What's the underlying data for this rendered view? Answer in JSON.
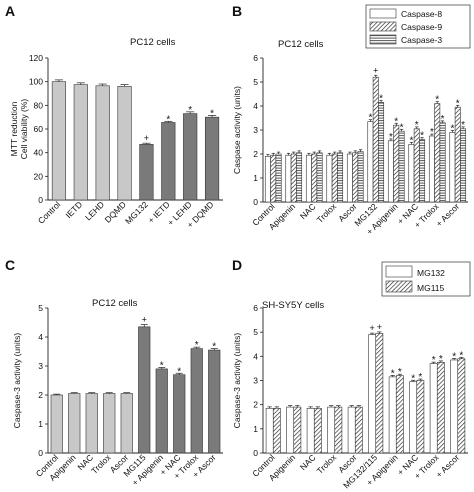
{
  "chart_data": [
    {
      "panel": "A",
      "type": "bar",
      "title": "PC12 cells",
      "ylabel": [
        "MTT reduction",
        "Cell viability (%)"
      ],
      "ylim": [
        0,
        120
      ],
      "yticks": [
        0,
        20,
        40,
        60,
        80,
        100,
        120
      ],
      "categories": [
        "Control",
        "IETD",
        "LEHD",
        "DQMD",
        "MG132",
        "+ IETD",
        "+ LEHD",
        "+ DQMD"
      ],
      "values": [
        100,
        97.5,
        96.5,
        96,
        47,
        65.5,
        73,
        70
      ],
      "errors": [
        1.5,
        1.5,
        1.5,
        1.5,
        1,
        1,
        1.5,
        1.5
      ],
      "annotations": [
        "",
        "",
        "",
        "",
        "+",
        "*",
        "*",
        "*"
      ],
      "bar_colors": [
        "#c8c8c8",
        "#c8c8c8",
        "#c8c8c8",
        "#c8c8c8",
        "#7a7a7a",
        "#7a7a7a",
        "#7a7a7a",
        "#7a7a7a"
      ]
    },
    {
      "panel": "B",
      "type": "bar",
      "title": "PC12 cells",
      "ylabel": "Caspase activity (units)",
      "ylim": [
        0,
        6
      ],
      "yticks": [
        0,
        1,
        2,
        3,
        4,
        5,
        6
      ],
      "categories": [
        "Control",
        "Apigenin",
        "NAC",
        "Trolox",
        "Ascor",
        "MG132",
        "+ Apigenin",
        "+ NAC",
        "+ Trolox",
        "+ Ascor"
      ],
      "legend": {
        "position": "top-right",
        "entries": [
          "Caspase-8",
          "Caspase-9",
          "Caspase-3"
        ]
      },
      "series": [
        {
          "name": "Caspase-8",
          "pattern": "open",
          "values": [
            1.9,
            1.95,
            1.95,
            1.95,
            2.0,
            3.35,
            2.55,
            2.4,
            2.75,
            2.9
          ],
          "annotations": [
            "",
            "",
            "",
            "",
            "",
            "*",
            "*",
            "*",
            "*",
            "*"
          ]
        },
        {
          "name": "Caspase-9",
          "pattern": "hatched",
          "values": [
            1.95,
            2.0,
            2.0,
            2.0,
            2.05,
            5.2,
            3.2,
            3.05,
            4.1,
            3.95
          ],
          "annotations": [
            "",
            "",
            "",
            "",
            "",
            "+",
            "*",
            "*",
            "*",
            "*"
          ]
        },
        {
          "name": "Caspase-3",
          "pattern": "lines",
          "values": [
            2.0,
            2.05,
            2.05,
            2.05,
            2.1,
            4.15,
            2.95,
            2.6,
            3.3,
            3.05
          ],
          "annotations": [
            "",
            "",
            "",
            "",
            "",
            "*",
            "*",
            "*",
            "*",
            "*"
          ]
        }
      ],
      "errors": 0.08
    },
    {
      "panel": "C",
      "type": "bar",
      "title": "PC12 cells",
      "ylabel": "Caspase-3 activity (units)",
      "ylim": [
        0,
        5
      ],
      "yticks": [
        0,
        1,
        2,
        3,
        4,
        5
      ],
      "categories": [
        "Control",
        "Apigenin",
        "NAC",
        "Trolox",
        "Ascor",
        "MG115",
        "+ Apigenin",
        "+ NAC",
        "+ Trolox",
        "+ Ascor"
      ],
      "values": [
        2.0,
        2.05,
        2.05,
        2.05,
        2.05,
        4.35,
        2.9,
        2.7,
        3.6,
        3.55
      ],
      "errors": [
        0.03,
        0.03,
        0.03,
        0.03,
        0.03,
        0.08,
        0.05,
        0.05,
        0.05,
        0.05
      ],
      "annotations": [
        "",
        "",
        "",
        "",
        "",
        "+",
        "*",
        "*",
        "*",
        "*"
      ],
      "bar_colors": [
        "#c8c8c8",
        "#c8c8c8",
        "#c8c8c8",
        "#c8c8c8",
        "#c8c8c8",
        "#7a7a7a",
        "#7a7a7a",
        "#7a7a7a",
        "#7a7a7a",
        "#7a7a7a"
      ]
    },
    {
      "panel": "D",
      "type": "bar",
      "title": "SH-SY5Y cells",
      "ylabel": "Caspase-3 activity (units)",
      "ylim": [
        0,
        6
      ],
      "yticks": [
        0,
        1,
        2,
        3,
        4,
        5,
        6
      ],
      "categories": [
        "Control",
        "Apigenin",
        "NAC",
        "Trolox",
        "Ascor",
        "MG132/115",
        "+ Apigenin",
        "+ NAC",
        "+ Trolox",
        "+ Ascor"
      ],
      "legend": {
        "position": "top-right",
        "entries": [
          "MG132",
          "MG115"
        ]
      },
      "series": [
        {
          "name": "MG132",
          "pattern": "open",
          "values": [
            1.85,
            1.9,
            1.85,
            1.9,
            1.9,
            4.9,
            3.15,
            2.95,
            3.7,
            3.85
          ],
          "annotations": [
            "",
            "",
            "",
            "",
            "",
            "+",
            "*",
            "*",
            "*",
            "*"
          ]
        },
        {
          "name": "MG115",
          "pattern": "hatched",
          "values": [
            1.85,
            1.9,
            1.85,
            1.9,
            1.9,
            4.95,
            3.2,
            3.0,
            3.75,
            3.9
          ],
          "annotations": [
            "",
            "",
            "",
            "",
            "",
            "+",
            "*",
            "*",
            "*",
            "*"
          ]
        }
      ],
      "errors": 0.06
    }
  ]
}
